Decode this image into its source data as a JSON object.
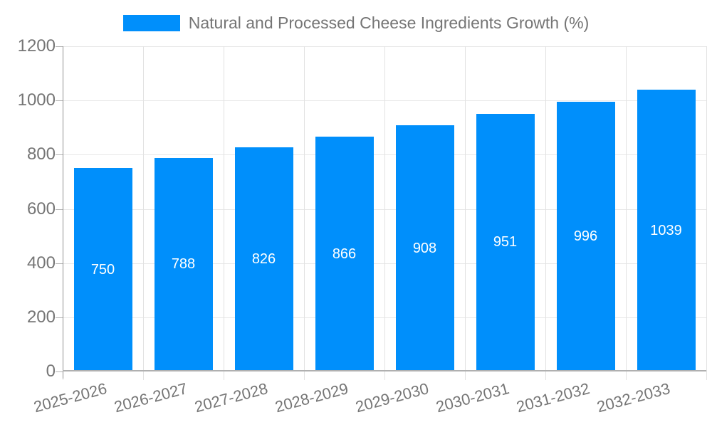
{
  "legend": {
    "label": "Natural and Processed Cheese Ingredients Growth (%)",
    "swatch_color": "#008FFB"
  },
  "chart_data": {
    "type": "bar",
    "title": "Natural and Processed Cheese Ingredients Growth (%)",
    "categories": [
      "2025-2026",
      "2026-2027",
      "2027-2028",
      "2028-2029",
      "2029-2030",
      "2030-2031",
      "2031-2032",
      "2032-2033"
    ],
    "values": [
      750,
      788,
      826,
      866,
      908,
      951,
      996,
      1039
    ],
    "xlabel": "",
    "ylabel": "",
    "ylim": [
      0,
      1200
    ],
    "yticks": [
      0,
      200,
      400,
      600,
      800,
      1000,
      1200
    ],
    "grid": true,
    "legend_position": "top",
    "bar_color": "#008FFB",
    "value_label_color": "#FFFFFF",
    "axis_text_color": "#757575",
    "gridline_color": "#e7e7e7",
    "axis_line_color": "#8f8f8f",
    "tick_color": "#b3b3b3"
  }
}
